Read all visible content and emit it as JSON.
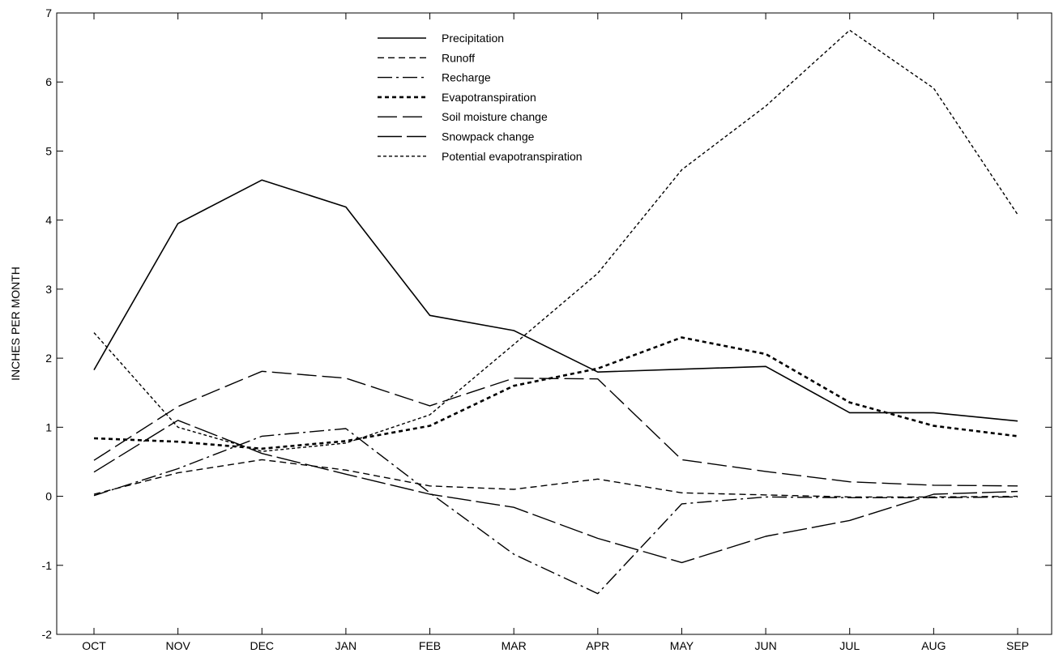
{
  "chart_data": {
    "type": "line",
    "title": "",
    "xlabel": "",
    "ylabel": "INCHES PER MONTH",
    "ylim": [
      -2,
      7
    ],
    "yticks": [
      -2,
      -1,
      0,
      1,
      2,
      3,
      4,
      5,
      6,
      7
    ],
    "grid": false,
    "legend_position": "top-center",
    "categories": [
      "OCT",
      "NOV",
      "DEC",
      "JAN",
      "FEB",
      "MAR",
      "APR",
      "MAY",
      "JUN",
      "JUL",
      "AUG",
      "SEP"
    ],
    "series": [
      {
        "name": "Precipitation",
        "style": "solid",
        "values": [
          1.83,
          3.95,
          4.58,
          4.19,
          2.62,
          2.4,
          1.8,
          1.84,
          1.88,
          1.21,
          1.21,
          1.09
        ]
      },
      {
        "name": "Runoff",
        "style": "dashed",
        "values": [
          0.03,
          0.34,
          0.53,
          0.38,
          0.15,
          0.1,
          0.25,
          0.05,
          0.02,
          -0.01,
          -0.01,
          0.0
        ]
      },
      {
        "name": "Recharge",
        "style": "dash-dot",
        "values": [
          0.01,
          0.4,
          0.87,
          0.98,
          0.05,
          -0.84,
          -1.41,
          -0.11,
          -0.01,
          -0.02,
          -0.02,
          -0.01
        ]
      },
      {
        "name": "Evapotranspiration",
        "style": "bold-dotted",
        "values": [
          0.84,
          0.79,
          0.69,
          0.8,
          1.02,
          1.6,
          1.85,
          2.3,
          2.06,
          1.36,
          1.02,
          0.87
        ]
      },
      {
        "name": "Soil moisture change",
        "style": "long-dash",
        "values": [
          0.52,
          1.3,
          1.81,
          1.71,
          1.31,
          1.71,
          1.7,
          0.53,
          0.36,
          0.21,
          0.16,
          0.15
        ]
      },
      {
        "name": "Snowpack change",
        "style": "long-dash-2",
        "values": [
          0.35,
          1.1,
          0.62,
          0.32,
          0.03,
          -0.16,
          -0.61,
          -0.96,
          -0.58,
          -0.35,
          0.03,
          0.07
        ]
      },
      {
        "name": "Potential evapotranspiration",
        "style": "fine-dotted",
        "values": [
          2.37,
          1.0,
          0.65,
          0.77,
          1.18,
          2.2,
          3.23,
          4.73,
          5.65,
          6.75,
          5.91,
          4.08
        ]
      }
    ]
  }
}
